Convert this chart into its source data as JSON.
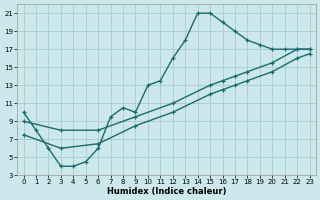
{
  "xlabel": "Humidex (Indice chaleur)",
  "background_color": "#cce8ec",
  "grid_color": "#aacccc",
  "line_color": "#1a6b6e",
  "xlim": [
    -0.5,
    23.5
  ],
  "ylim": [
    3,
    22
  ],
  "xticks": [
    0,
    1,
    2,
    3,
    4,
    5,
    6,
    7,
    8,
    9,
    10,
    11,
    12,
    13,
    14,
    15,
    16,
    17,
    18,
    19,
    20,
    21,
    22,
    23
  ],
  "yticks": [
    3,
    5,
    7,
    9,
    11,
    13,
    15,
    17,
    19,
    21
  ],
  "curve1_x": [
    0,
    1,
    2,
    3,
    4,
    5,
    6,
    7,
    8,
    9,
    10,
    11,
    12,
    13,
    14,
    15,
    16,
    17,
    18,
    19,
    20,
    21,
    22,
    23
  ],
  "curve1_y": [
    10,
    8,
    6,
    4,
    4,
    4.5,
    6,
    9.5,
    10.5,
    10,
    13,
    13.5,
    16,
    18,
    21,
    21,
    20,
    19,
    18,
    17.5,
    17,
    17,
    17,
    17
  ],
  "curve2_x": [
    0,
    3,
    6,
    9,
    12,
    15,
    16,
    17,
    18,
    20,
    22,
    23
  ],
  "curve2_y": [
    9,
    8,
    8,
    9.5,
    11,
    13,
    13.5,
    14,
    14.5,
    15.5,
    17,
    17
  ],
  "curve3_x": [
    0,
    3,
    6,
    9,
    12,
    15,
    16,
    17,
    18,
    20,
    22,
    23
  ],
  "curve3_y": [
    7.5,
    6,
    6.5,
    8.5,
    10,
    12,
    12.5,
    13,
    13.5,
    14.5,
    16,
    16.5
  ]
}
